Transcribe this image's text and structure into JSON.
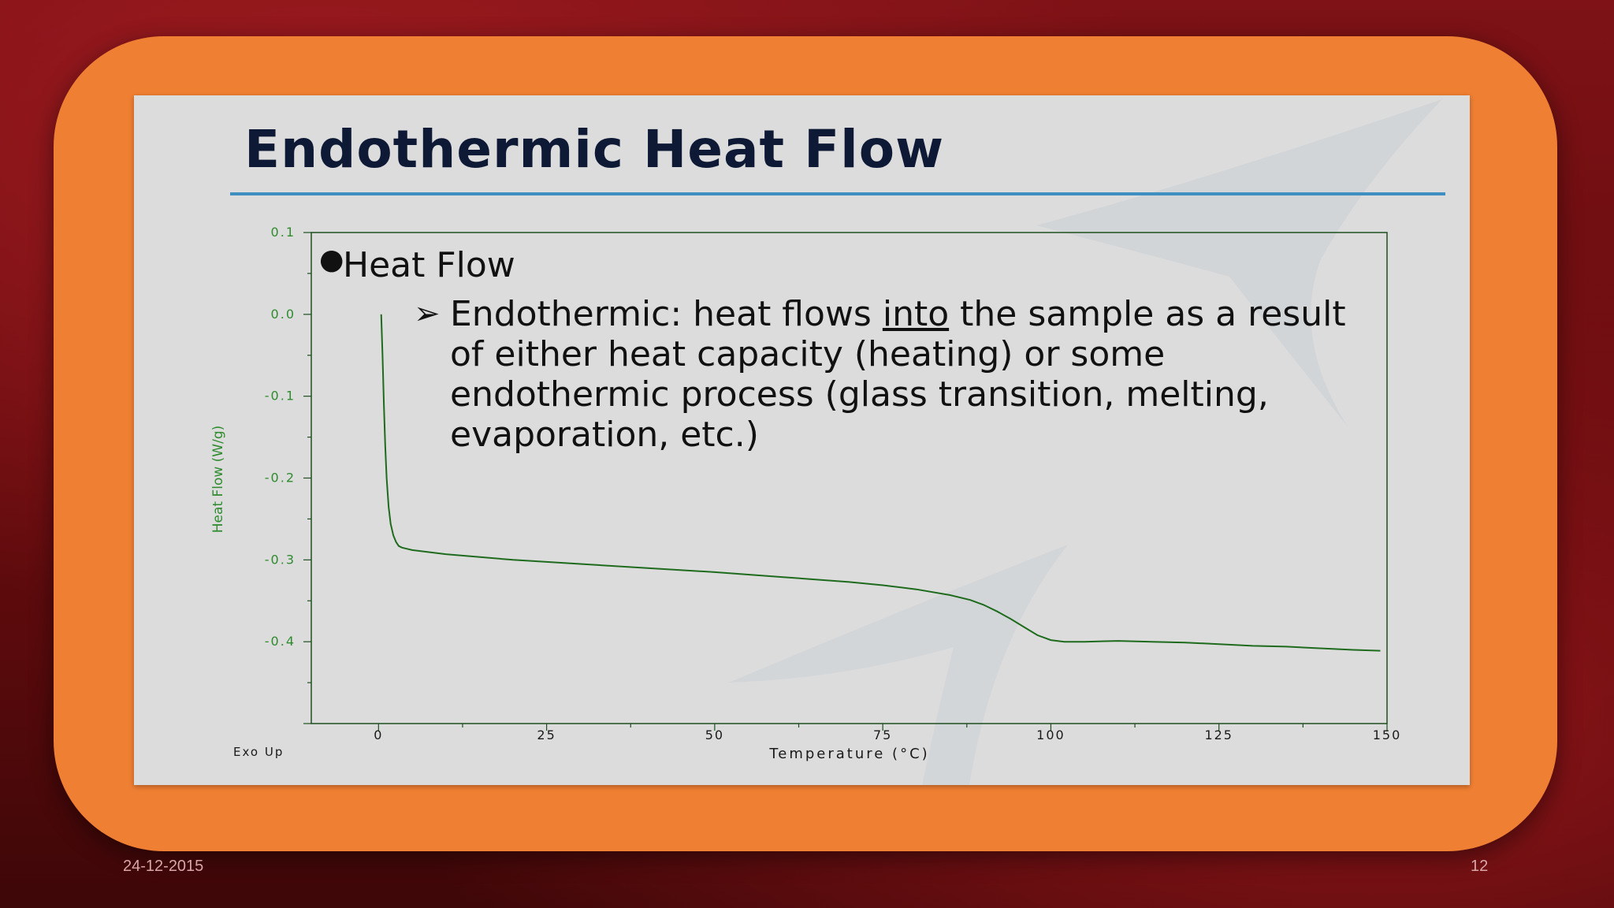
{
  "slide": {
    "title": "Endothermic Heat Flow",
    "bullet1": "Heat Flow",
    "bullet2_prefix": "Endothermic:  heat flows ",
    "bullet2_underlined": "into",
    "bullet2_suffix": " the sample as a result of either heat capacity (heating) or some endothermic process (glass transition, melting, evaporation, etc.)"
  },
  "footer": {
    "date": "24-12-2015",
    "page_number": "12"
  },
  "chart_data": {
    "type": "line",
    "xlabel": "Temperature (°C)",
    "ylabel": "Heat Flow (W/g)",
    "corner_label": "Exo Up",
    "xlim": [
      -10,
      150
    ],
    "ylim": [
      -0.5,
      0.1
    ],
    "xticks": [
      0,
      25,
      50,
      75,
      100,
      125,
      150
    ],
    "xtick_labels": [
      "0",
      "25",
      "50",
      "75",
      "100",
      "125",
      "150"
    ],
    "yticks": [
      0.1,
      0.0,
      -0.1,
      -0.2,
      -0.3,
      -0.4
    ],
    "ytick_labels": [
      "0.1",
      "0.0",
      "-0.1",
      "-0.2",
      "-0.3",
      "-0.4"
    ],
    "grid": false,
    "color": "#1e6b1e",
    "series": [
      {
        "x": [
          0.4,
          0.6,
          0.8,
          1.0,
          1.2,
          1.5,
          1.8,
          2.2,
          2.6,
          3.0,
          3.5,
          4,
          5,
          10,
          20,
          30,
          40,
          50,
          60,
          70,
          75,
          80,
          85,
          88,
          90,
          92,
          94,
          96,
          98,
          100,
          102,
          105,
          110,
          115,
          120,
          125,
          130,
          135,
          140,
          145,
          149
        ],
        "y": [
          0.0,
          -0.05,
          -0.11,
          -0.16,
          -0.2,
          -0.235,
          -0.256,
          -0.27,
          -0.278,
          -0.283,
          -0.285,
          -0.286,
          -0.288,
          -0.293,
          -0.3,
          -0.305,
          -0.31,
          -0.315,
          -0.321,
          -0.327,
          -0.331,
          -0.336,
          -0.343,
          -0.349,
          -0.355,
          -0.363,
          -0.372,
          -0.382,
          -0.392,
          -0.398,
          -0.4,
          -0.4,
          -0.399,
          -0.4,
          -0.401,
          -0.403,
          -0.405,
          -0.406,
          -0.408,
          -0.41,
          -0.411
        ]
      }
    ]
  }
}
